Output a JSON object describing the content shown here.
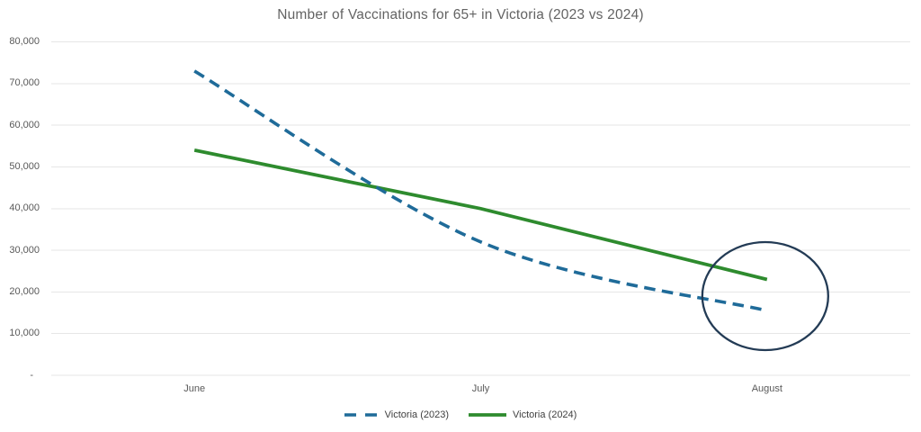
{
  "chart_data": {
    "type": "line",
    "title": "Number of Vaccinations for 65+ in Victoria (2023 vs 2024)",
    "categories": [
      "June",
      "July",
      "August"
    ],
    "series": [
      {
        "name": "Victoria (2023)",
        "values": [
          73000,
          32000,
          15500
        ],
        "color": "#1f6b99",
        "style": "dashed",
        "smooth": true
      },
      {
        "name": "Victoria (2024)",
        "values": [
          54000,
          40000,
          23000
        ],
        "color": "#2e8b2e",
        "style": "solid",
        "smooth": false
      }
    ],
    "xlabel": "",
    "ylabel": "",
    "ylim": [
      0,
      80000
    ],
    "y_tick_step": 10000,
    "y_tick_labels": [
      "-",
      "10,000",
      "20,000",
      "30,000",
      "40,000",
      "50,000",
      "60,000",
      "70,000",
      "80,000"
    ],
    "grid": true,
    "gridline_color": "#e6e6e6",
    "legend_position": "bottom",
    "annotation": {
      "type": "ellipse",
      "description": "circle highlighting August data points",
      "color": "#233b55",
      "center_category_index": 2,
      "center_value": 19000,
      "rx": 70,
      "ry": 60
    }
  }
}
